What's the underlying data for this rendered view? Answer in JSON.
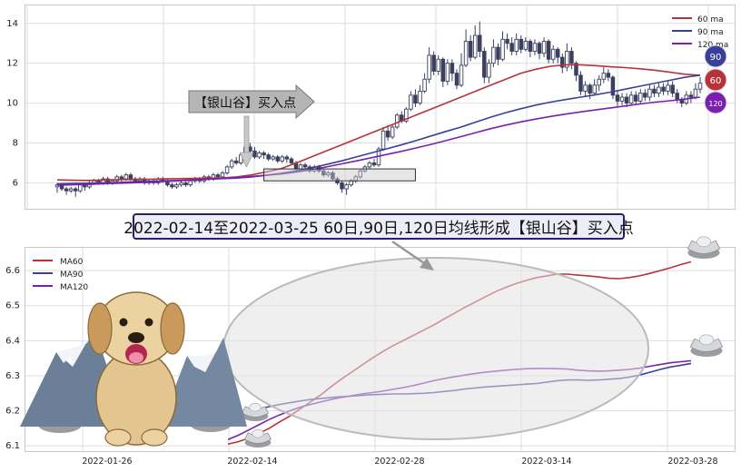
{
  "chart_data": [
    {
      "type": "candlestick",
      "yticks": [
        6,
        8,
        10,
        12,
        14
      ],
      "legend": [
        {
          "name": "60 ma",
          "color": "#b8323a"
        },
        {
          "name": "90 ma",
          "color": "#3a3f9a"
        },
        {
          "name": "120 ma",
          "color": "#7a1fb0"
        }
      ],
      "legend_position": "top-right",
      "grid": true,
      "candles": [
        [
          5.8,
          5.9,
          5.5,
          6.0
        ],
        [
          5.9,
          5.7,
          5.6,
          6.0
        ],
        [
          5.7,
          5.6,
          5.4,
          5.8
        ],
        [
          5.6,
          5.7,
          5.5,
          5.8
        ],
        [
          5.7,
          5.6,
          5.3,
          5.8
        ],
        [
          5.6,
          5.9,
          5.5,
          6.0
        ],
        [
          5.9,
          5.8,
          5.6,
          6.0
        ],
        [
          5.8,
          6.0,
          5.7,
          6.1
        ],
        [
          6.0,
          6.1,
          5.9,
          6.2
        ],
        [
          6.1,
          6.0,
          5.9,
          6.2
        ],
        [
          6.0,
          6.2,
          5.9,
          6.3
        ],
        [
          6.2,
          6.0,
          5.9,
          6.3
        ],
        [
          6.0,
          6.1,
          5.9,
          6.2
        ],
        [
          6.1,
          6.3,
          6.0,
          6.4
        ],
        [
          6.3,
          6.2,
          6.0,
          6.4
        ],
        [
          6.2,
          6.4,
          6.1,
          6.5
        ],
        [
          6.4,
          6.2,
          6.1,
          6.5
        ],
        [
          6.2,
          6.1,
          6.0,
          6.3
        ],
        [
          6.1,
          6.2,
          6.0,
          6.3
        ],
        [
          6.2,
          6.0,
          5.9,
          6.3
        ],
        [
          6.0,
          6.1,
          5.9,
          6.2
        ],
        [
          6.1,
          6.0,
          5.9,
          6.2
        ],
        [
          6.0,
          6.2,
          5.9,
          6.3
        ],
        [
          6.2,
          6.1,
          6.0,
          6.3
        ],
        [
          6.1,
          5.9,
          5.8,
          6.2
        ],
        [
          5.9,
          5.8,
          5.7,
          6.0
        ],
        [
          5.8,
          5.9,
          5.7,
          6.0
        ],
        [
          5.9,
          6.0,
          5.8,
          6.1
        ],
        [
          6.0,
          5.9,
          5.8,
          6.1
        ],
        [
          5.9,
          6.1,
          5.8,
          6.2
        ],
        [
          6.1,
          6.2,
          6.0,
          6.3
        ],
        [
          6.2,
          6.1,
          6.0,
          6.3
        ],
        [
          6.1,
          6.3,
          6.0,
          6.4
        ],
        [
          6.3,
          6.2,
          6.1,
          6.4
        ],
        [
          6.2,
          6.4,
          6.1,
          6.5
        ],
        [
          6.4,
          6.3,
          6.2,
          6.5
        ],
        [
          6.3,
          6.5,
          6.2,
          6.6
        ],
        [
          6.5,
          6.8,
          6.4,
          6.9
        ],
        [
          6.8,
          7.1,
          6.7,
          7.2
        ],
        [
          7.1,
          7.0,
          6.9,
          7.3
        ],
        [
          7.0,
          7.4,
          6.9,
          7.5
        ],
        [
          7.4,
          7.8,
          7.3,
          7.9
        ],
        [
          7.8,
          7.6,
          7.4,
          8.0
        ],
        [
          7.6,
          7.3,
          7.2,
          7.8
        ],
        [
          7.3,
          7.5,
          7.2,
          7.6
        ],
        [
          7.5,
          7.4,
          7.2,
          7.6
        ],
        [
          7.4,
          7.2,
          7.1,
          7.5
        ],
        [
          7.2,
          7.3,
          7.1,
          7.4
        ],
        [
          7.3,
          7.1,
          7.0,
          7.4
        ],
        [
          7.1,
          7.3,
          7.0,
          7.4
        ],
        [
          7.3,
          7.2,
          7.0,
          7.4
        ],
        [
          7.2,
          7.0,
          6.9,
          7.3
        ],
        [
          7.0,
          6.7,
          6.6,
          7.1
        ],
        [
          6.7,
          6.9,
          6.6,
          7.0
        ],
        [
          6.9,
          6.8,
          6.7,
          7.0
        ],
        [
          6.8,
          6.6,
          6.5,
          6.9
        ],
        [
          6.6,
          6.8,
          6.5,
          6.9
        ],
        [
          6.8,
          6.6,
          6.5,
          6.9
        ],
        [
          6.6,
          6.4,
          6.3,
          6.7
        ],
        [
          6.4,
          6.5,
          6.3,
          6.6
        ],
        [
          6.5,
          6.2,
          6.1,
          6.6
        ],
        [
          6.2,
          6.0,
          5.9,
          6.3
        ],
        [
          6.0,
          5.7,
          5.5,
          6.1
        ],
        [
          5.7,
          5.9,
          5.4,
          6.0
        ],
        [
          5.9,
          6.1,
          5.8,
          6.2
        ],
        [
          6.1,
          6.3,
          6.0,
          6.4
        ],
        [
          6.3,
          6.6,
          6.2,
          6.7
        ],
        [
          6.6,
          6.8,
          6.5,
          6.9
        ],
        [
          6.8,
          7.0,
          6.7,
          7.1
        ],
        [
          7.0,
          6.9,
          6.8,
          7.2
        ],
        [
          6.9,
          7.7,
          6.8,
          7.8
        ],
        [
          7.7,
          8.6,
          7.6,
          8.8
        ],
        [
          8.6,
          8.3,
          8.1,
          8.9
        ],
        [
          8.3,
          8.8,
          8.2,
          8.9
        ],
        [
          8.8,
          9.4,
          8.7,
          9.5
        ],
        [
          9.4,
          9.1,
          9.0,
          9.6
        ],
        [
          9.1,
          9.7,
          9.0,
          9.8
        ],
        [
          9.7,
          10.4,
          9.6,
          10.6
        ],
        [
          10.4,
          10.0,
          9.8,
          10.7
        ],
        [
          10.0,
          10.6,
          9.9,
          10.9
        ],
        [
          10.6,
          11.2,
          10.5,
          11.5
        ],
        [
          11.2,
          12.4,
          11.0,
          12.8
        ],
        [
          12.4,
          11.6,
          11.4,
          12.6
        ],
        [
          11.6,
          12.2,
          11.4,
          12.4
        ],
        [
          12.2,
          11.1,
          10.8,
          12.3
        ],
        [
          11.1,
          12.0,
          10.9,
          12.2
        ],
        [
          12.0,
          11.5,
          11.1,
          12.2
        ],
        [
          11.5,
          10.9,
          10.7,
          11.7
        ],
        [
          10.9,
          11.9,
          10.8,
          12.5
        ],
        [
          11.9,
          13.1,
          11.8,
          13.7
        ],
        [
          13.1,
          12.3,
          12.1,
          13.4
        ],
        [
          12.3,
          13.4,
          12.2,
          13.9
        ],
        [
          13.4,
          12.6,
          12.3,
          14.1
        ],
        [
          12.6,
          11.3,
          11.0,
          12.8
        ],
        [
          11.3,
          12.0,
          11.0,
          12.2
        ],
        [
          12.0,
          12.8,
          11.8,
          13.2
        ],
        [
          12.8,
          12.2,
          11.9,
          13.0
        ],
        [
          12.2,
          13.2,
          12.1,
          13.6
        ],
        [
          13.2,
          13.0,
          12.7,
          13.5
        ],
        [
          13.0,
          12.6,
          12.4,
          13.3
        ],
        [
          12.6,
          13.2,
          12.4,
          13.5
        ],
        [
          13.2,
          12.7,
          12.5,
          13.4
        ],
        [
          12.7,
          13.1,
          12.6,
          13.3
        ],
        [
          13.1,
          12.6,
          12.3,
          13.2
        ],
        [
          12.6,
          13.0,
          12.4,
          13.2
        ],
        [
          13.0,
          12.5,
          12.2,
          13.1
        ],
        [
          12.5,
          13.1,
          12.3,
          13.3
        ],
        [
          13.1,
          12.2,
          12.0,
          13.2
        ],
        [
          12.2,
          12.7,
          12.0,
          12.9
        ],
        [
          12.7,
          12.3,
          12.0,
          12.8
        ],
        [
          12.3,
          11.8,
          11.5,
          12.5
        ],
        [
          11.8,
          12.6,
          11.6,
          13.0
        ],
        [
          12.6,
          12.0,
          11.7,
          12.8
        ],
        [
          12.0,
          11.4,
          11.1,
          12.1
        ],
        [
          11.4,
          10.6,
          10.4,
          11.6
        ],
        [
          10.6,
          10.9,
          10.3,
          11.1
        ],
        [
          10.9,
          10.5,
          10.2,
          11.0
        ],
        [
          10.5,
          10.9,
          10.4,
          11.2
        ],
        [
          10.9,
          11.2,
          10.6,
          11.4
        ],
        [
          11.2,
          11.5,
          11.0,
          11.8
        ],
        [
          11.5,
          11.3,
          11.1,
          11.7
        ],
        [
          11.3,
          10.4,
          10.2,
          11.4
        ],
        [
          10.4,
          10.1,
          9.8,
          10.6
        ],
        [
          10.1,
          10.3,
          9.9,
          10.5
        ],
        [
          10.3,
          10.0,
          9.8,
          10.5
        ],
        [
          10.0,
          10.4,
          9.9,
          10.6
        ],
        [
          10.4,
          10.1,
          9.9,
          10.6
        ],
        [
          10.1,
          10.5,
          10.0,
          10.7
        ],
        [
          10.5,
          10.3,
          10.1,
          10.7
        ],
        [
          10.3,
          10.7,
          10.1,
          10.9
        ],
        [
          10.7,
          10.5,
          10.3,
          10.9
        ],
        [
          10.5,
          10.8,
          10.3,
          11.0
        ],
        [
          10.8,
          10.6,
          10.4,
          11.0
        ],
        [
          10.6,
          10.9,
          10.4,
          11.1
        ],
        [
          10.9,
          10.5,
          10.3,
          11.1
        ],
        [
          10.5,
          10.2,
          10.0,
          10.7
        ],
        [
          10.2,
          10.0,
          9.8,
          10.3
        ],
        [
          10.0,
          10.4,
          9.9,
          10.6
        ],
        [
          10.4,
          10.3,
          10.0,
          10.6
        ],
        [
          10.3,
          10.7,
          10.2,
          11.0
        ],
        [
          10.7,
          11.0,
          10.5,
          11.3
        ]
      ],
      "ma60": [
        6.15,
        6.13,
        6.12,
        6.14,
        6.16,
        6.17,
        6.18,
        6.2,
        6.21,
        6.22,
        6.23,
        6.25,
        6.3,
        6.4,
        6.55,
        6.72,
        7.0,
        7.3,
        7.6,
        7.9,
        8.2,
        8.5,
        8.8,
        9.1,
        9.4,
        9.7,
        10.0,
        10.3,
        10.6,
        10.9,
        11.2,
        11.5,
        11.7,
        11.85,
        11.92,
        11.92,
        11.88,
        11.82,
        11.78,
        11.72,
        11.65,
        11.55,
        11.45,
        11.4
      ],
      "ma90": [
        5.95,
        5.97,
        5.98,
        6.0,
        6.02,
        6.05,
        6.07,
        6.1,
        6.12,
        6.15,
        6.18,
        6.21,
        6.24,
        6.3,
        6.38,
        6.48,
        6.6,
        6.75,
        6.92,
        7.1,
        7.3,
        7.5,
        7.7,
        7.9,
        8.12,
        8.35,
        8.58,
        8.8,
        9.05,
        9.3,
        9.52,
        9.72,
        9.9,
        10.05,
        10.18,
        10.3,
        10.42,
        10.55,
        10.7,
        10.85,
        11.0,
        11.15,
        11.3,
        11.4
      ],
      "ma120": [
        5.88,
        5.9,
        5.92,
        5.95,
        5.98,
        6.0,
        6.03,
        6.07,
        6.1,
        6.14,
        6.18,
        6.22,
        6.27,
        6.32,
        6.38,
        6.45,
        6.55,
        6.66,
        6.8,
        6.95,
        7.1,
        7.26,
        7.42,
        7.58,
        7.75,
        7.93,
        8.12,
        8.32,
        8.52,
        8.72,
        8.9,
        9.06,
        9.2,
        9.33,
        9.45,
        9.56,
        9.66,
        9.76,
        9.86,
        9.96,
        10.05,
        10.12,
        10.2,
        10.3
      ],
      "annotation_label": "【银山谷】买入点",
      "annotation_box": {
        "x0": 45,
        "x1": 78,
        "y0": 6.1,
        "y1": 6.7
      },
      "badges": [
        "90",
        "60",
        "120"
      ],
      "badge_colors": [
        "#3a3f9a",
        "#b8323a",
        "#7a1fb0"
      ]
    },
    {
      "type": "line",
      "xticks": [
        "2022-01-26",
        "2022-02-14",
        "2022-02-28",
        "2022-03-14",
        "2022-03-28"
      ],
      "yticks": [
        6.1,
        6.2,
        6.3,
        6.4,
        6.5,
        6.6
      ],
      "ylim": [
        6.085,
        6.665
      ],
      "grid": true,
      "legend_position": "top-left",
      "series": [
        {
          "name": "MA60",
          "color": "#b8323a",
          "values": [
            6.105,
            6.112,
            6.122,
            6.135,
            6.15,
            6.168,
            6.185,
            6.205,
            6.225,
            6.245,
            6.268,
            6.29,
            6.31,
            6.33,
            6.35,
            6.368,
            6.385,
            6.4,
            6.415,
            6.43,
            6.445,
            6.462,
            6.478,
            6.495,
            6.51,
            6.525,
            6.54,
            6.552,
            6.563,
            6.572,
            6.58,
            6.585,
            6.59,
            6.59,
            6.587,
            6.585,
            6.582,
            6.578,
            6.577,
            6.58,
            6.585,
            6.592,
            6.6,
            6.608,
            6.617,
            6.625
          ]
        },
        {
          "name": "MA90",
          "color": "#3a3f9a",
          "values": [
            6.18,
            6.19,
            6.198,
            6.205,
            6.212,
            6.218,
            6.223,
            6.228,
            6.232,
            6.235,
            6.238,
            6.24,
            6.242,
            6.244,
            6.246,
            6.247,
            6.248,
            6.248,
            6.249,
            6.25,
            6.252,
            6.255,
            6.258,
            6.262,
            6.265,
            6.268,
            6.27,
            6.272,
            6.274,
            6.276,
            6.278,
            6.282,
            6.286,
            6.288,
            6.288,
            6.287,
            6.288,
            6.29,
            6.292,
            6.296,
            6.302,
            6.31,
            6.318,
            6.325,
            6.33,
            6.335
          ]
        },
        {
          "name": "MA120",
          "color": "#7a1fb0",
          "values": [
            6.118,
            6.13,
            6.145,
            6.16,
            6.175,
            6.188,
            6.2,
            6.21,
            6.218,
            6.225,
            6.232,
            6.238,
            6.243,
            6.248,
            6.252,
            6.256,
            6.261,
            6.266,
            6.272,
            6.279,
            6.286,
            6.292,
            6.297,
            6.302,
            6.306,
            6.31,
            6.313,
            6.316,
            6.318,
            6.32,
            6.321,
            6.321,
            6.32,
            6.319,
            6.316,
            6.314,
            6.313,
            6.314,
            6.316,
            6.318,
            6.322,
            6.327,
            6.332,
            6.337,
            6.34,
            6.343
          ]
        }
      ]
    }
  ],
  "banner_text": "2022-02-14至2022-03-25 60日,90日,120日均线形成【银山谷】买入点"
}
